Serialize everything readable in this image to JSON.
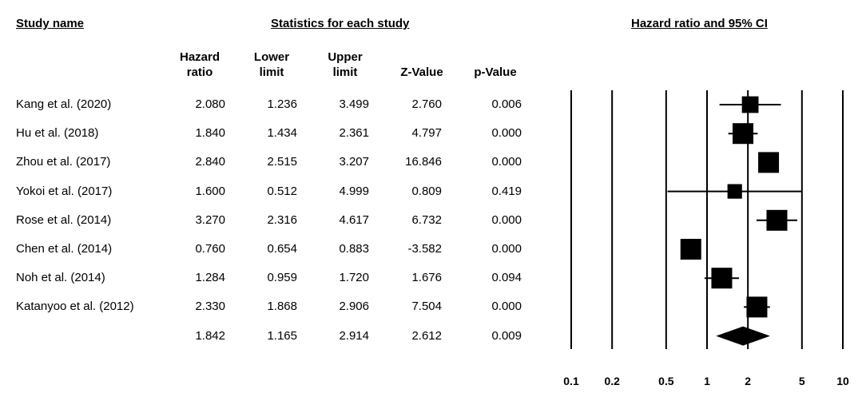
{
  "headers": {
    "study_name": "Study name",
    "statistics": "Statistics for each study",
    "plot_title": "Hazard ratio and 95% CI"
  },
  "columns": {
    "hazard_ratio": [
      "Hazard",
      "ratio"
    ],
    "lower_limit": [
      "Lower",
      "limit"
    ],
    "upper_limit": [
      "Upper",
      "limit"
    ],
    "z_value": "Z-Value",
    "p_value": "p-Value"
  },
  "rows": [
    {
      "study": "Kang et al. (2020)",
      "hr": "2.080",
      "lower": "1.236",
      "upper": "3.499",
      "z": "2.760",
      "p": "0.006"
    },
    {
      "study": "Hu et al. (2018)",
      "hr": "1.840",
      "lower": "1.434",
      "upper": "2.361",
      "z": "4.797",
      "p": "0.000"
    },
    {
      "study": "Zhou et al. (2017)",
      "hr": "2.840",
      "lower": "2.515",
      "upper": "3.207",
      "z": "16.846",
      "p": "0.000"
    },
    {
      "study": "Yokoi et al. (2017)",
      "hr": "1.600",
      "lower": "0.512",
      "upper": "4.999",
      "z": "0.809",
      "p": "0.419"
    },
    {
      "study": "Rose et al. (2014)",
      "hr": "3.270",
      "lower": "2.316",
      "upper": "4.617",
      "z": "6.732",
      "p": "0.000"
    },
    {
      "study": "Chen et al. (2014)",
      "hr": "0.760",
      "lower": "0.654",
      "upper": "0.883",
      "z": "-3.582",
      "p": "0.000"
    },
    {
      "study": "Noh et al. (2014)",
      "hr": "1.284",
      "lower": "0.959",
      "upper": "1.720",
      "z": "1.676",
      "p": "0.094"
    },
    {
      "study": "Katanyoo et al. (2012)",
      "hr": "2.330",
      "lower": "1.868",
      "upper": "2.906",
      "z": "7.504",
      "p": "0.000"
    }
  ],
  "summary": {
    "study": "",
    "hr": "1.842",
    "lower": "1.165",
    "upper": "2.914",
    "z": "2.612",
    "p": "0.009"
  },
  "chart_data": {
    "type": "forest",
    "title": "Hazard ratio and 95% CI",
    "x_scale": "log",
    "xlim": [
      0.1,
      10
    ],
    "x_ticks": [
      0.1,
      0.2,
      0.5,
      1,
      2,
      5,
      10
    ],
    "x_tick_labels": [
      "0.1",
      "0.2",
      "0.5",
      "1",
      "2",
      "5",
      "10"
    ],
    "reference_line": 1,
    "clip_range": [
      0.5,
      5
    ],
    "marker_weights": [
      0.8,
      1.0,
      1.0,
      0.7,
      1.0,
      1.0,
      1.0,
      1.0
    ],
    "series": [
      {
        "categories": [
          "Kang et al. (2020)",
          "Hu et al. (2018)",
          "Zhou et al. (2017)",
          "Yokoi et al. (2017)",
          "Rose et al. (2014)",
          "Chen et al. (2014)",
          "Noh et al. (2014)",
          "Katanyoo et al. (2012)"
        ],
        "hr": [
          2.08,
          1.84,
          2.84,
          1.6,
          3.27,
          0.76,
          1.284,
          2.33
        ],
        "lower": [
          1.236,
          1.434,
          2.515,
          0.512,
          2.316,
          0.654,
          0.959,
          1.868
        ],
        "upper": [
          3.499,
          2.361,
          3.207,
          4.999,
          4.617,
          0.883,
          1.72,
          2.906
        ]
      }
    ],
    "summary": {
      "hr": 1.842,
      "lower": 1.165,
      "upper": 2.914
    }
  }
}
